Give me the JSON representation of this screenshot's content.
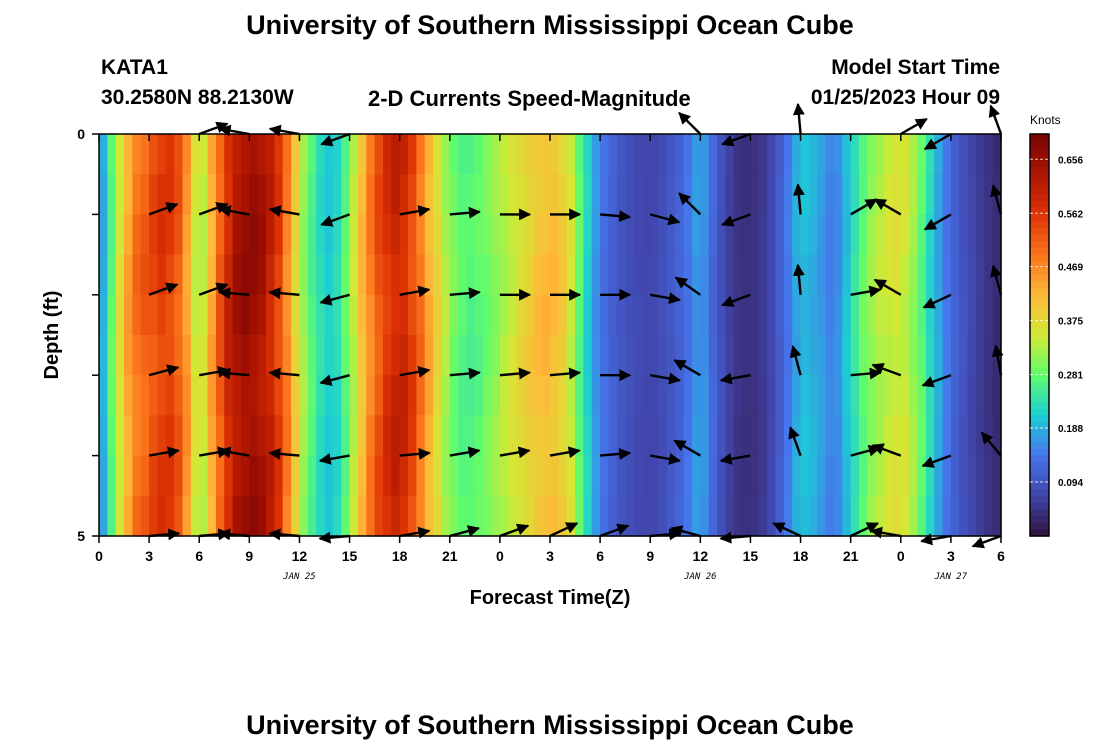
{
  "header": {
    "title": "University of Southern Mississippi Ocean Cube",
    "station": "KATA1",
    "coords": "30.2580N  88.2130W",
    "subtitle": "2-D Currents Speed-Magnitude",
    "model_start_label": "Model Start Time",
    "model_start_value": "01/25/2023 Hour 09"
  },
  "footer": {
    "title": "University of Southern Mississippi Ocean Cube"
  },
  "colors": {
    "background": "#ffffff",
    "arrow": "#000000"
  },
  "chart_data": {
    "type": "heatmap",
    "title": "2-D Currents Speed-Magnitude",
    "xlabel": "Forecast Time(Z)",
    "ylabel": "Depth (ft)",
    "x_ticks": [
      "0",
      "3",
      "6",
      "9",
      "12",
      "15",
      "18",
      "21",
      "0",
      "3",
      "6",
      "9",
      "12",
      "15",
      "18",
      "21",
      "0",
      "3",
      "6"
    ],
    "x_range_hours": [
      0,
      54
    ],
    "y_ticks": [
      "0",
      "5"
    ],
    "y_range": [
      0,
      5
    ],
    "date_labels": [
      {
        "text": "JAN 25",
        "hour": 12
      },
      {
        "text": "JAN 26",
        "hour": 36
      },
      {
        "text": "JAN 27",
        "hour": 51
      }
    ],
    "colorbar": {
      "unit": "Knots",
      "min": 0.0,
      "max": 0.7,
      "ticks": [
        "0.656",
        "0.562",
        "0.469",
        "0.375",
        "0.281",
        "0.188",
        "0.094"
      ],
      "tick_values": [
        0.656,
        0.562,
        0.469,
        0.375,
        0.281,
        0.188,
        0.094
      ]
    },
    "speed_profile": {
      "hours": [
        0,
        1,
        2,
        3,
        4,
        5,
        6,
        7,
        8,
        9,
        10,
        11,
        12,
        13,
        14,
        15,
        16,
        17,
        18,
        19,
        20,
        21,
        22,
        23,
        24,
        25,
        26,
        27,
        28,
        29,
        30,
        31,
        32,
        33,
        34,
        35,
        36,
        37,
        38,
        39,
        40,
        41,
        42,
        43,
        44,
        45,
        46,
        47,
        48,
        49,
        50,
        51,
        52,
        53,
        54
      ],
      "speed_knots": [
        0.14,
        0.32,
        0.48,
        0.52,
        0.56,
        0.5,
        0.3,
        0.48,
        0.62,
        0.66,
        0.62,
        0.52,
        0.34,
        0.24,
        0.2,
        0.3,
        0.45,
        0.55,
        0.6,
        0.52,
        0.4,
        0.3,
        0.26,
        0.28,
        0.32,
        0.36,
        0.4,
        0.42,
        0.38,
        0.24,
        0.14,
        0.1,
        0.08,
        0.07,
        0.09,
        0.12,
        0.18,
        0.1,
        0.05,
        0.04,
        0.06,
        0.12,
        0.2,
        0.18,
        0.14,
        0.22,
        0.3,
        0.34,
        0.36,
        0.3,
        0.2,
        0.12,
        0.08,
        0.05,
        0.03
      ]
    },
    "arrows": {
      "hours": [
        3,
        6,
        9,
        12,
        15,
        18,
        21,
        24,
        27,
        30,
        33,
        36,
        39,
        42,
        45,
        48,
        51,
        54
      ],
      "depths": [
        0,
        1,
        2,
        3,
        4,
        5
      ],
      "directions_deg": [
        [
          null,
          20,
          170,
          170,
          200,
          null,
          null,
          null,
          null,
          null,
          null,
          135,
          200,
          95,
          null,
          30,
          210,
          110
        ],
        [
          20,
          20,
          170,
          170,
          200,
          10,
          5,
          0,
          0,
          -5,
          -15,
          135,
          200,
          95,
          30,
          150,
          210,
          105
        ],
        [
          20,
          20,
          175,
          175,
          195,
          10,
          5,
          0,
          0,
          0,
          -10,
          145,
          200,
          95,
          10,
          150,
          205,
          105
        ],
        [
          15,
          10,
          175,
          175,
          195,
          10,
          5,
          5,
          5,
          0,
          -10,
          150,
          190,
          105,
          5,
          160,
          200,
          100
        ],
        [
          10,
          10,
          170,
          175,
          190,
          5,
          10,
          10,
          10,
          5,
          -10,
          150,
          190,
          110,
          15,
          160,
          200,
          130
        ],
        [
          5,
          5,
          175,
          175,
          185,
          10,
          15,
          20,
          25,
          20,
          5,
          165,
          185,
          155,
          25,
          170,
          190,
          200
        ]
      ]
    }
  }
}
